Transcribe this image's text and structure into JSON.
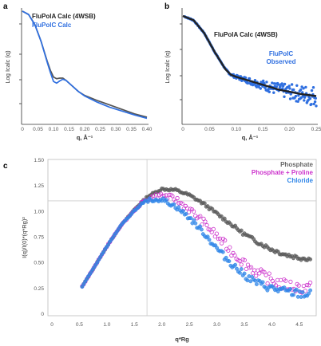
{
  "chart_data": [
    {
      "panel": "a",
      "type": "line",
      "xlabel": "q, Å⁻¹",
      "ylabel": "Log Icalc (q)",
      "xlim": [
        0,
        0.4
      ],
      "xticks": [
        "0",
        "0.05",
        "0.10",
        "0.15",
        "0.20",
        "0.25",
        "0.30",
        "0.35",
        "0.40"
      ],
      "legend_placement": "top-left",
      "series": [
        {
          "name": "FluPolA Calc (4WSB)",
          "color": "#555555",
          "x": [
            0,
            0.02,
            0.04,
            0.06,
            0.08,
            0.09,
            0.1,
            0.11,
            0.12,
            0.13,
            0.14,
            0.16,
            0.18,
            0.2,
            0.24,
            0.28,
            0.32,
            0.36,
            0.4
          ],
          "y": [
            1.0,
            0.97,
            0.88,
            0.73,
            0.55,
            0.47,
            0.41,
            0.395,
            0.4,
            0.4,
            0.38,
            0.33,
            0.28,
            0.245,
            0.2,
            0.16,
            0.12,
            0.08,
            0.05
          ]
        },
        {
          "name": "FluPolC Calc",
          "color": "#2f6fe0",
          "x": [
            0,
            0.02,
            0.04,
            0.06,
            0.08,
            0.09,
            0.1,
            0.11,
            0.12,
            0.13,
            0.14,
            0.16,
            0.18,
            0.2,
            0.24,
            0.28,
            0.32,
            0.36,
            0.4
          ],
          "y": [
            1.0,
            0.97,
            0.88,
            0.73,
            0.54,
            0.45,
            0.37,
            0.355,
            0.375,
            0.39,
            0.38,
            0.33,
            0.28,
            0.24,
            0.185,
            0.14,
            0.105,
            0.07,
            0.04
          ]
        }
      ]
    },
    {
      "panel": "b",
      "type": "scatter",
      "xlabel": "q, Å⁻¹",
      "ylabel": "Log Icalc (q)",
      "xlim": [
        0,
        0.25
      ],
      "xticks": [
        "0",
        "0.05",
        "0.10",
        "0.15",
        "0.20",
        "0.25"
      ],
      "series": [
        {
          "name": "FluPolA Calc (4WSB)",
          "color": "#222222",
          "x": [
            0,
            0.02,
            0.04,
            0.06,
            0.08,
            0.09,
            0.1,
            0.12,
            0.14,
            0.16,
            0.18,
            0.2,
            0.22,
            0.25
          ],
          "y": [
            1.0,
            0.96,
            0.84,
            0.66,
            0.5,
            0.45,
            0.43,
            0.4,
            0.37,
            0.34,
            0.31,
            0.29,
            0.27,
            0.25
          ]
        },
        {
          "name": "FluPolC Observed",
          "color": "#2f6fe0",
          "x": [
            0,
            0.02,
            0.04,
            0.06,
            0.08,
            0.09,
            0.1,
            0.12,
            0.14,
            0.16,
            0.18,
            0.2,
            0.22,
            0.25
          ],
          "y": [
            1.0,
            0.96,
            0.84,
            0.66,
            0.5,
            0.45,
            0.43,
            0.4,
            0.37,
            0.34,
            0.31,
            0.29,
            0.27,
            0.25
          ]
        }
      ]
    },
    {
      "panel": "c",
      "type": "scatter",
      "xlabel": "q*Rg",
      "ylabel": "I(q)/I(0)*(q*Rg)²",
      "xlim": [
        0,
        4.75
      ],
      "ylim": [
        0,
        1.5
      ],
      "xticks": [
        "0",
        "0.5",
        "1.0",
        "1.5",
        "2.0",
        "2.5",
        "3.0",
        "3.5",
        "4.0",
        "4.5"
      ],
      "yticks": [
        "0",
        "0.25",
        "0.50",
        "0.75",
        "1.00",
        "1.25",
        "1.50"
      ],
      "reference_lines": {
        "x": 1.73,
        "y": 1.104
      },
      "legend_placement": "top-right",
      "series": [
        {
          "name": "Phosphate",
          "color": "#5a5a5a",
          "x": [
            0.55,
            0.75,
            1.0,
            1.25,
            1.5,
            1.75,
            2.0,
            2.25,
            2.5,
            2.75,
            3.0,
            3.25,
            3.5,
            3.75,
            4.0,
            4.25,
            4.5,
            4.7
          ],
          "y": [
            0.27,
            0.44,
            0.66,
            0.86,
            1.02,
            1.15,
            1.22,
            1.21,
            1.16,
            1.08,
            0.98,
            0.88,
            0.78,
            0.7,
            0.63,
            0.58,
            0.55,
            0.54
          ]
        },
        {
          "name": "Phosphate + Proline",
          "color": "#cc33cc",
          "x": [
            0.55,
            0.75,
            1.0,
            1.25,
            1.5,
            1.75,
            2.0,
            2.25,
            2.5,
            2.75,
            3.0,
            3.25,
            3.5,
            3.75,
            4.0,
            4.25,
            4.5,
            4.7
          ],
          "y": [
            0.27,
            0.44,
            0.66,
            0.86,
            1.01,
            1.13,
            1.16,
            1.12,
            1.02,
            0.9,
            0.76,
            0.62,
            0.5,
            0.4,
            0.33,
            0.28,
            0.26,
            0.25
          ]
        },
        {
          "name": "Chloride",
          "color": "#2f86e8",
          "x": [
            0.55,
            0.75,
            1.0,
            1.25,
            1.5,
            1.75,
            2.0,
            2.25,
            2.5,
            2.75,
            3.0,
            3.25,
            3.5,
            3.75,
            4.0,
            4.25,
            4.5,
            4.7
          ],
          "y": [
            0.27,
            0.44,
            0.66,
            0.86,
            1.01,
            1.11,
            1.12,
            1.05,
            0.94,
            0.8,
            0.64,
            0.5,
            0.38,
            0.3,
            0.25,
            0.22,
            0.2,
            0.19
          ]
        }
      ]
    }
  ],
  "labels": {
    "a": "a",
    "b": "b",
    "c": "c",
    "a_leg1": "FluPolA Calc (4WSB)",
    "a_leg2": "FluPolC Calc",
    "b_leg1": "FluPolA Calc (4WSB)",
    "b_leg2a": "FluPolC",
    "b_leg2b": "Observed",
    "c_leg1": "Phosphate",
    "c_leg2": "Phosphate + Proline",
    "c_leg3": "Chloride"
  }
}
